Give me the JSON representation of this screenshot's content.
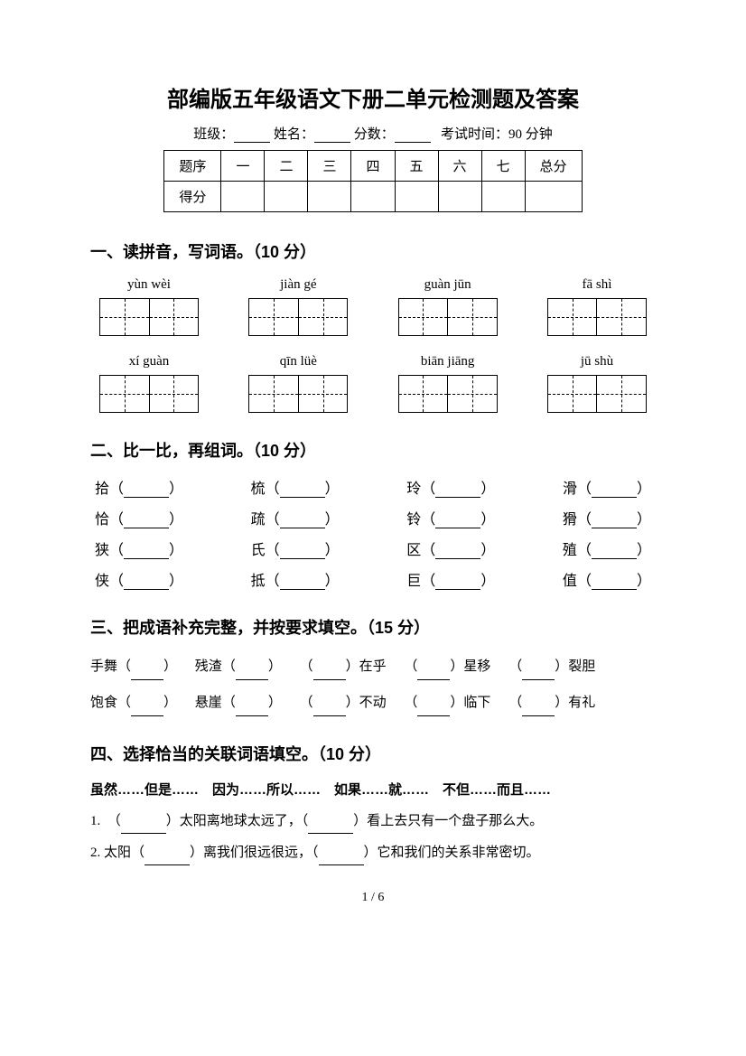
{
  "title": "部编版五年级语文下册二单元检测题及答案",
  "info": {
    "class_label": "班级：",
    "name_label": "姓名：",
    "score_label": "分数：",
    "time_label": "考试时间：90 分钟"
  },
  "score_table": {
    "header": [
      "题序",
      "一",
      "二",
      "三",
      "四",
      "五",
      "六",
      "七",
      "总分"
    ],
    "row2_label": "得分"
  },
  "section1": {
    "title": "一、读拼音，写词语。（10 分）",
    "pinyin_row1": [
      "yùn wèi",
      "jiàn gé",
      "guàn jūn",
      "fā shì"
    ],
    "pinyin_row2": [
      "xí guàn",
      "qīn lüè",
      "biān jiāng",
      "jū shù"
    ]
  },
  "section2": {
    "title": "二、比一比，再组词。（10 分）",
    "cols": [
      [
        "拾",
        "恰",
        "狭",
        "侠"
      ],
      [
        "梳",
        "疏",
        "氏",
        "抵"
      ],
      [
        "玲",
        "铃",
        "区",
        "巨"
      ],
      [
        "滑",
        "猾",
        "殖",
        "值"
      ]
    ]
  },
  "section3": {
    "title": "三、把成语补充完整，并按要求填空。（15 分）",
    "line1": [
      {
        "pre": "手舞",
        "post": ""
      },
      {
        "pre": "残渣",
        "post": ""
      },
      {
        "pre": "",
        "post": "在乎"
      },
      {
        "pre": "",
        "post": "星移"
      },
      {
        "pre": "",
        "post": "裂胆"
      }
    ],
    "line2": [
      {
        "pre": "饱食",
        "post": ""
      },
      {
        "pre": "悬崖",
        "post": ""
      },
      {
        "pre": "",
        "post": "不动"
      },
      {
        "pre": "",
        "post": "临下"
      },
      {
        "pre": "",
        "post": "有礼"
      }
    ]
  },
  "section4": {
    "title": "四、选择恰当的关联词语填空。（10 分）",
    "options": "虽然……但是……　因为……所以……　如果……就……　不但……而且……",
    "q1_pre": "1.　（",
    "q1_mid1": "）太阳离地球太远了，（",
    "q1_mid2": "）看上去只有一个盘子那么大。",
    "q2_pre": "2. 太阳（",
    "q2_mid1": "）离我们很远很远，（",
    "q2_mid2": "）它和我们的关系非常密切。"
  },
  "page_num": "1 / 6"
}
